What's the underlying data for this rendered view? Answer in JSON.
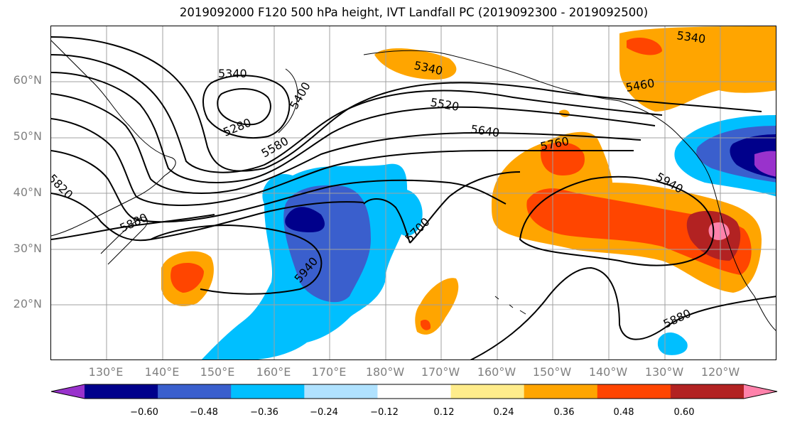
{
  "title": "2019092000 F120 500 hPa height, IVT Landfall PC (2019092300 - 2019092500)",
  "lat_labels": [
    "60°N",
    "50°N",
    "40°N",
    "30°N",
    "20°N"
  ],
  "lon_labels": [
    "130°E",
    "140°E",
    "150°E",
    "160°E",
    "170°E",
    "180°W",
    "170°W",
    "160°W",
    "150°W",
    "140°W",
    "130°W",
    "120°W"
  ],
  "contour_labels": [
    "5340",
    "5340",
    "5340",
    "5280",
    "5400",
    "5460",
    "5520",
    "5580",
    "5640",
    "5700",
    "5760",
    "5820",
    "5880",
    "5880",
    "5940",
    "5940"
  ],
  "colorbar": {
    "tick_labels": [
      "−0.60",
      "−0.48",
      "−0.36",
      "−0.24",
      "−0.12",
      "0.12",
      "0.24",
      "0.36",
      "0.48",
      "0.60"
    ],
    "colors": [
      "#9932cc",
      "#00008b",
      "#3a5fcd",
      "#00bfff",
      "#b0e2ff",
      "#ffffff",
      "#ffec8b",
      "#ffa500",
      "#ff4500",
      "#b22222",
      "#ff82ab"
    ]
  },
  "colors": {
    "land_outline": "#000000",
    "grid": "#a0a0a0",
    "contour": "#000000"
  }
}
